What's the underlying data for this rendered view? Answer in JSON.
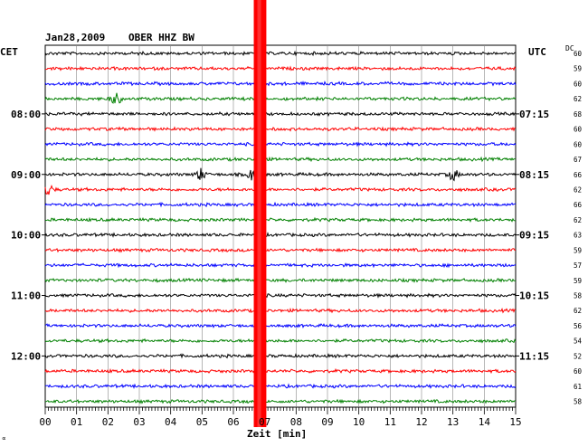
{
  "header": {
    "date": "Jan28,2009",
    "station": "OBER HHZ BW",
    "left_tz": "CET",
    "right_tz": "UTC",
    "dc_label": "DC"
  },
  "left_hour_labels": [
    {
      "row": 4,
      "text": "08:00"
    },
    {
      "row": 8,
      "text": "09:00"
    },
    {
      "row": 12,
      "text": "10:00"
    },
    {
      "row": 16,
      "text": "11:00"
    },
    {
      "row": 20,
      "text": "12:00"
    }
  ],
  "right_hour_labels": [
    {
      "row": 4,
      "text": "07:15"
    },
    {
      "row": 8,
      "text": "08:15"
    },
    {
      "row": 12,
      "text": "09:15"
    },
    {
      "row": 16,
      "text": "10:15"
    },
    {
      "row": 20,
      "text": "11:15"
    }
  ],
  "dc_values": [
    "60",
    "59",
    "60",
    "62",
    "68",
    "60",
    "60",
    "67",
    "66",
    "62",
    "66",
    "62",
    "63",
    "59",
    "57",
    "59",
    "58",
    "62",
    "56",
    "54",
    "52",
    "60",
    "61",
    "58"
  ],
  "trace_colors": [
    "#000000",
    "#ff0000",
    "#0000ff",
    "#008000"
  ],
  "spike_color": "#ff0000",
  "x_axis": {
    "label": "Zeit [min]",
    "ticks": [
      "00",
      "01",
      "02",
      "03",
      "04",
      "05",
      "06",
      "07",
      "08",
      "09",
      "10",
      "11",
      "12",
      "13",
      "14",
      "15"
    ],
    "range": [
      0,
      15
    ]
  },
  "corner_mark": "∝",
  "chart_data": {
    "type": "line",
    "title": "Jan28,2009   OBER HHZ BW",
    "xlabel": "Zeit [min]",
    "xlim": [
      0,
      15
    ],
    "rows": 24,
    "spike_minutes": [
      6.65,
      7.05
    ],
    "events": [
      {
        "row": 3,
        "minute": 2.25
      },
      {
        "row": 8,
        "minute": 4.95
      },
      {
        "row": 8,
        "minute": 6.6
      },
      {
        "row": 8,
        "minute": 13.0
      },
      {
        "row": 9,
        "minute": 0.1
      }
    ]
  }
}
